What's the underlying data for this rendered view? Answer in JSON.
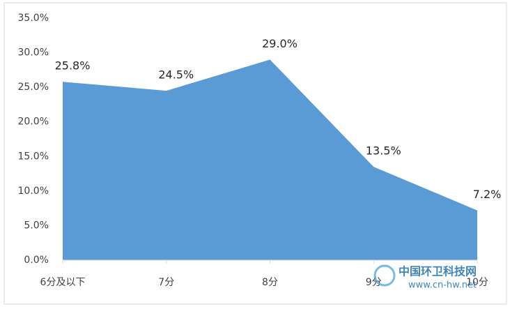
{
  "chart_data": {
    "type": "area",
    "categories": [
      "6分及以下",
      "7分",
      "8分",
      "9分",
      "10分"
    ],
    "values": [
      25.8,
      24.5,
      29.0,
      13.5,
      7.2
    ],
    "value_labels": [
      "25.8%",
      "24.5%",
      "29.0%",
      "13.5%",
      "7.2%"
    ],
    "color": "#5b9bd5",
    "ylim": [
      0,
      35
    ],
    "yticks": [
      {
        "value": 0,
        "label": "0.0%"
      },
      {
        "value": 5,
        "label": "5.0%"
      },
      {
        "value": 10,
        "label": "10.0%"
      },
      {
        "value": 15,
        "label": "15.0%"
      },
      {
        "value": 20,
        "label": "20.0%"
      },
      {
        "value": 25,
        "label": "25.0%"
      },
      {
        "value": 30,
        "label": "30.0%"
      },
      {
        "value": 35,
        "label": "35.0%"
      }
    ],
    "grid": false
  },
  "watermark": [
    "中国环卫科技网",
    "www.cn-hw.net"
  ]
}
